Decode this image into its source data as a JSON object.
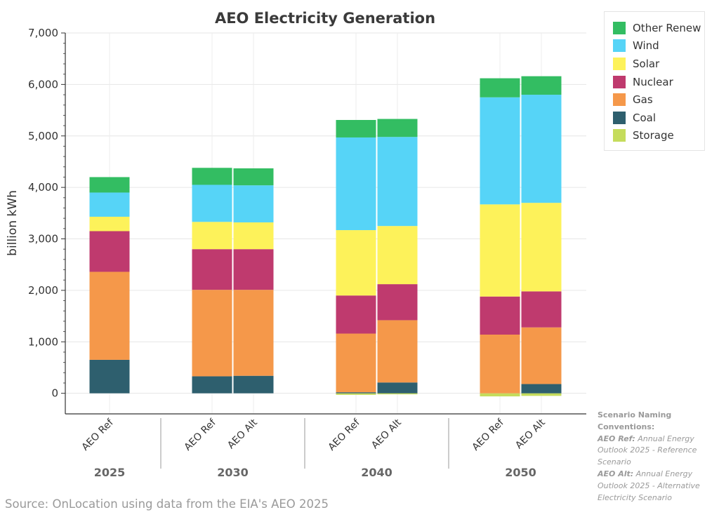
{
  "chart_data": {
    "type": "bar",
    "stacked": true,
    "title": "AEO Electricity Generation",
    "ylabel": "billion kWh",
    "xlabel": "",
    "ylim": [
      -400,
      7000
    ],
    "yticks": [
      0,
      1000,
      2000,
      3000,
      4000,
      5000,
      6000,
      7000
    ],
    "ytick_labels": [
      "0",
      "1,000",
      "2,000",
      "3,000",
      "4,000",
      "5,000",
      "6,000",
      "7,000"
    ],
    "grid": true,
    "legend_position": "top-right",
    "groups": [
      {
        "label": "2025",
        "bars": [
          "AEO Ref"
        ]
      },
      {
        "label": "2030",
        "bars": [
          "AEO Ref",
          "AEO Alt"
        ]
      },
      {
        "label": "2040",
        "bars": [
          "AEO Ref",
          "AEO Alt"
        ]
      },
      {
        "label": "2050",
        "bars": [
          "AEO Ref",
          "AEO Alt"
        ]
      }
    ],
    "categories": [
      "2025 AEO Ref",
      "2030 AEO Ref",
      "2030 AEO Alt",
      "2040 AEO Ref",
      "2040 AEO Alt",
      "2050 AEO Ref",
      "2050 AEO Alt"
    ],
    "series": [
      {
        "name": "Storage",
        "color": "#c5dc5c",
        "values": [
          0,
          0,
          0,
          -30,
          -20,
          -60,
          -50
        ]
      },
      {
        "name": "Coal",
        "color": "#2e5f6e",
        "values": [
          650,
          330,
          340,
          20,
          210,
          0,
          180
        ]
      },
      {
        "name": "Gas",
        "color": "#f5984a",
        "values": [
          1710,
          1680,
          1670,
          1140,
          1210,
          1140,
          1100
        ]
      },
      {
        "name": "Nuclear",
        "color": "#bf3a6e",
        "values": [
          790,
          790,
          790,
          740,
          700,
          740,
          700
        ]
      },
      {
        "name": "Solar",
        "color": "#fdf25a",
        "values": [
          280,
          530,
          520,
          1270,
          1130,
          1790,
          1720
        ]
      },
      {
        "name": "Wind",
        "color": "#56d4f7",
        "values": [
          470,
          720,
          720,
          1800,
          1730,
          2080,
          2100
        ]
      },
      {
        "name": "Other Renew",
        "color": "#33bd62",
        "values": [
          300,
          330,
          330,
          340,
          350,
          370,
          360
        ]
      }
    ]
  },
  "legend_order": [
    "Other Renew",
    "Wind",
    "Solar",
    "Nuclear",
    "Gas",
    "Coal",
    "Storage"
  ],
  "notes": {
    "heading": "Scenario Naming Conventions:",
    "ref_term": "AEO Ref:",
    "ref_def": "Annual Energy Outlook 2025 - Reference Scenario",
    "alt_term": "AEO Alt:",
    "alt_def": "Annual Energy Outlook 2025 - Alternative Electricity Scenario"
  },
  "source": "Source: OnLocation using data from the EIA's AEO 2025"
}
